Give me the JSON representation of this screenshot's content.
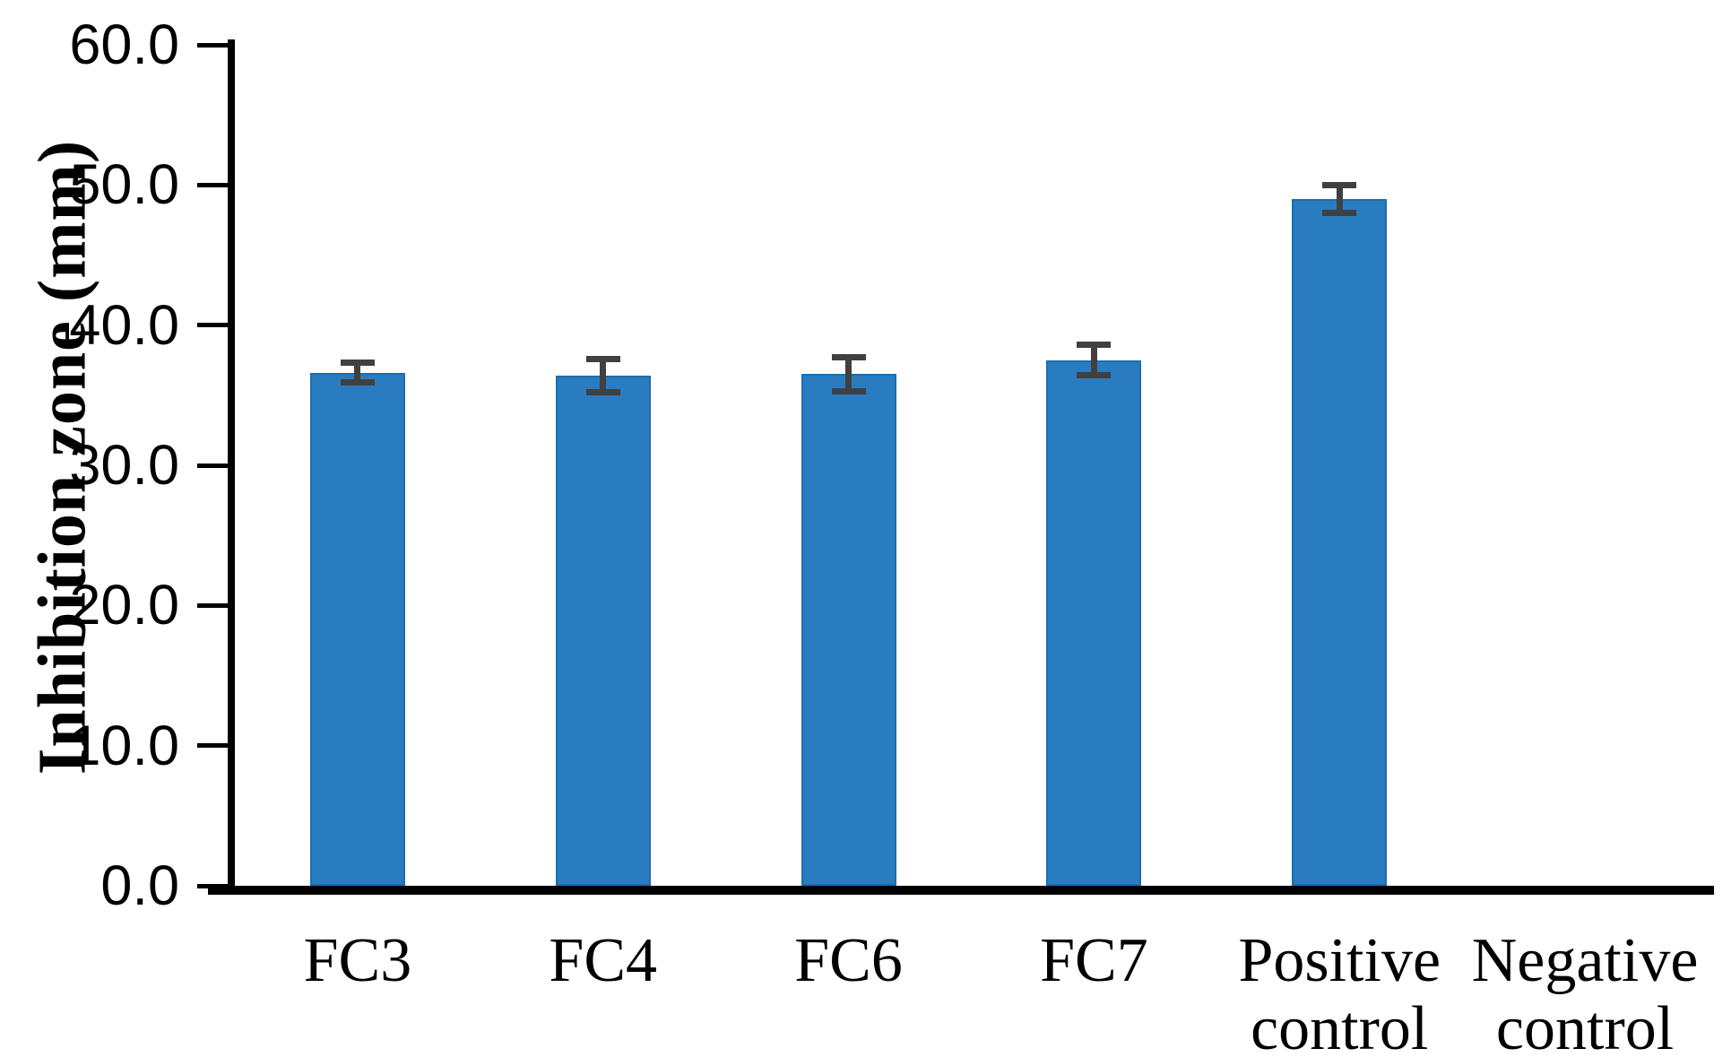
{
  "chart_data": {
    "type": "bar",
    "title": "",
    "xlabel": "",
    "ylabel": "Inhibition zone (mm)",
    "ylim": [
      0,
      60
    ],
    "yticks": [
      0,
      10,
      20,
      30,
      40,
      50,
      60
    ],
    "ytick_labels": [
      "0.0",
      "10.0",
      "20.0",
      "30.0",
      "40.0",
      "50.0",
      "60.0"
    ],
    "categories": [
      "FC3",
      "FC4",
      "FC6",
      "FC7",
      "Positive control",
      "Negative control"
    ],
    "category_display": [
      "FC3",
      "FC4",
      "FC6",
      "FC7",
      "Positive\ncontrol",
      "Negative\ncontrol"
    ],
    "series": [
      {
        "name": "Inhibition zone",
        "values": [
          36.6,
          36.4,
          36.5,
          37.5,
          49.0,
          0
        ],
        "errors": [
          0.7,
          1.2,
          1.2,
          1.1,
          1.0,
          0
        ]
      }
    ],
    "grid": false,
    "legend": null,
    "colors": {
      "bar_fill": "#2a7cc1",
      "bar_border": "#1c6eae",
      "error_bar": "#404040",
      "axis": "#000000",
      "text": "#000000",
      "background": "#ffffff"
    }
  }
}
